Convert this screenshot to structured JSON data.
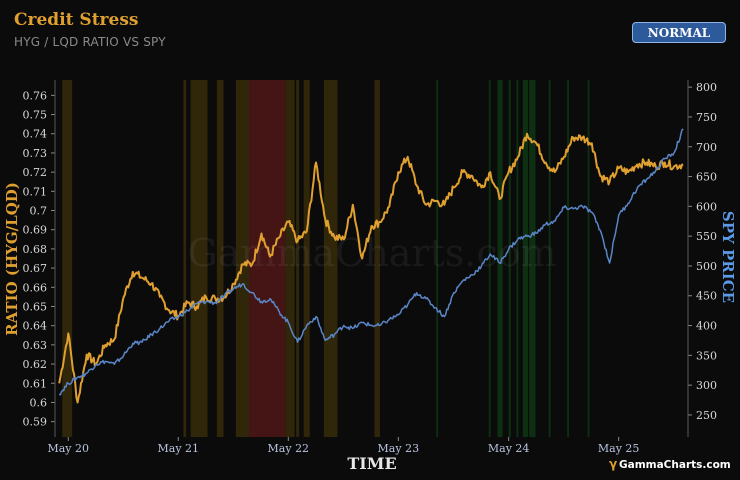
{
  "header": {
    "title": "Credit Stress",
    "subtitle": "HYG / LQD RATIO VS SPY",
    "status_badge": "NORMAL"
  },
  "colors": {
    "ratio": "#e0a030",
    "spy": "#5a86c8",
    "stress_high": "#5a1a1a",
    "stress_mild": "#3d300a",
    "calm": "#0f3a14",
    "background": "#0b0b0b"
  },
  "watermark": "GammaCharts.com",
  "brand": "GammaCharts.com",
  "chart_data": {
    "type": "line",
    "xlabel": "TIME",
    "ylabel_left": "RATIO (HYG/LQD)",
    "ylabel_right": "SPY PRICE",
    "x_ticks": [
      "May 20",
      "May 21",
      "May 22",
      "May 23",
      "May 24",
      "May 25"
    ],
    "y_left_ticks": [
      "0.59",
      "0.6",
      "0.61",
      "0.62",
      "0.63",
      "0.64",
      "0.65",
      "0.66",
      "0.67",
      "0.68",
      "0.69",
      "0.7",
      "0.71",
      "0.72",
      "0.73",
      "0.74",
      "0.75",
      "0.76"
    ],
    "y_right_ticks": [
      "250",
      "300",
      "350",
      "400",
      "450",
      "500",
      "550",
      "600",
      "650",
      "700",
      "750",
      "800"
    ],
    "xlim": [
      "2020-04-01",
      "2025-12-31"
    ],
    "ylim_left": [
      0.582,
      0.768
    ],
    "ylim_right": [
      213,
      812
    ],
    "grid": false,
    "series": [
      {
        "name": "HYG/LQD Ratio",
        "axis": "left",
        "x": [
          "2020-04",
          "2020-05",
          "2020-06",
          "2020-07",
          "2020-08",
          "2020-09",
          "2020-10",
          "2020-11",
          "2020-12",
          "2021-01",
          "2021-02",
          "2021-03",
          "2021-04",
          "2021-05",
          "2021-06",
          "2021-07",
          "2021-08",
          "2021-09",
          "2021-10",
          "2021-11",
          "2021-12",
          "2022-01",
          "2022-02",
          "2022-03",
          "2022-04",
          "2022-05",
          "2022-06",
          "2022-07",
          "2022-08",
          "2022-09",
          "2022-10",
          "2022-11",
          "2022-12",
          "2023-01",
          "2023-02",
          "2023-03",
          "2023-04",
          "2023-05",
          "2023-06",
          "2023-07",
          "2023-08",
          "2023-09",
          "2023-10",
          "2023-11",
          "2023-12",
          "2024-01",
          "2024-02",
          "2024-03",
          "2024-04",
          "2024-05",
          "2024-06",
          "2024-07",
          "2024-08",
          "2024-09",
          "2024-10",
          "2024-11",
          "2024-12",
          "2025-01",
          "2025-02",
          "2025-03",
          "2025-04",
          "2025-05",
          "2025-06",
          "2025-07",
          "2025-08",
          "2025-09",
          "2025-10",
          "2025-11",
          "2025-12"
        ],
        "values": [
          0.61,
          0.636,
          0.6,
          0.625,
          0.62,
          0.63,
          0.633,
          0.655,
          0.668,
          0.665,
          0.662,
          0.655,
          0.648,
          0.645,
          0.652,
          0.65,
          0.655,
          0.654,
          0.655,
          0.662,
          0.672,
          0.672,
          0.688,
          0.676,
          0.686,
          0.694,
          0.684,
          0.689,
          0.725,
          0.695,
          0.686,
          0.685,
          0.703,
          0.675,
          0.692,
          0.694,
          0.702,
          0.72,
          0.728,
          0.713,
          0.703,
          0.705,
          0.703,
          0.712,
          0.72,
          0.718,
          0.712,
          0.72,
          0.706,
          0.72,
          0.728,
          0.74,
          0.735,
          0.725,
          0.72,
          0.728,
          0.738,
          0.738,
          0.735,
          0.718,
          0.715,
          0.722,
          0.72,
          0.724,
          0.725,
          0.723,
          0.725,
          0.723,
          0.724
        ]
      },
      {
        "name": "SPY",
        "axis": "right",
        "x": [
          "2020-04",
          "2020-05",
          "2020-06",
          "2020-07",
          "2020-08",
          "2020-09",
          "2020-10",
          "2020-11",
          "2020-12",
          "2021-01",
          "2021-02",
          "2021-03",
          "2021-04",
          "2021-05",
          "2021-06",
          "2021-07",
          "2021-08",
          "2021-09",
          "2021-10",
          "2021-11",
          "2021-12",
          "2022-01",
          "2022-02",
          "2022-03",
          "2022-04",
          "2022-05",
          "2022-06",
          "2022-07",
          "2022-08",
          "2022-09",
          "2022-10",
          "2022-11",
          "2022-12",
          "2023-01",
          "2023-02",
          "2023-03",
          "2023-04",
          "2023-05",
          "2023-06",
          "2023-07",
          "2023-08",
          "2023-09",
          "2023-10",
          "2023-11",
          "2023-12",
          "2024-01",
          "2024-02",
          "2024-03",
          "2024-04",
          "2024-05",
          "2024-06",
          "2024-07",
          "2024-08",
          "2024-09",
          "2024-10",
          "2024-11",
          "2024-12",
          "2025-01",
          "2025-02",
          "2025-03",
          "2025-04",
          "2025-05",
          "2025-06",
          "2025-07",
          "2025-08",
          "2025-09",
          "2025-10",
          "2025-11",
          "2025-12"
        ],
        "values": [
          285,
          303,
          313,
          320,
          335,
          340,
          335,
          350,
          370,
          372,
          385,
          395,
          408,
          415,
          425,
          437,
          440,
          438,
          450,
          462,
          470,
          455,
          440,
          445,
          423,
          405,
          372,
          400,
          415,
          375,
          385,
          400,
          395,
          405,
          400,
          400,
          410,
          418,
          435,
          455,
          445,
          430,
          415,
          455,
          475,
          485,
          500,
          520,
          505,
          528,
          545,
          550,
          555,
          570,
          575,
          598,
          596,
          600,
          590,
          560,
          505,
          585,
          605,
          630,
          645,
          660,
          680,
          690,
          730
        ]
      }
    ],
    "regimes": [
      {
        "start": "2020-04-25",
        "end": "2020-05-28",
        "type": "mild"
      },
      {
        "start": "2021-06-01",
        "end": "2021-06-10",
        "type": "mild"
      },
      {
        "start": "2021-06-25",
        "end": "2021-08-20",
        "type": "mild"
      },
      {
        "start": "2021-09-20",
        "end": "2021-10-12",
        "type": "mild"
      },
      {
        "start": "2021-11-22",
        "end": "2022-01-05",
        "type": "mild"
      },
      {
        "start": "2022-01-05",
        "end": "2022-05-05",
        "type": "high"
      },
      {
        "start": "2022-05-05",
        "end": "2022-06-05",
        "type": "mild"
      },
      {
        "start": "2022-06-10",
        "end": "2022-06-20",
        "type": "mild"
      },
      {
        "start": "2022-07-05",
        "end": "2022-07-25",
        "type": "mild"
      },
      {
        "start": "2022-09-10",
        "end": "2022-10-25",
        "type": "mild"
      },
      {
        "start": "2023-02-25",
        "end": "2023-03-15",
        "type": "mild"
      },
      {
        "start": "2023-09-18",
        "end": "2023-09-24",
        "type": "calm"
      },
      {
        "start": "2024-03-10",
        "end": "2024-03-16",
        "type": "calm"
      },
      {
        "start": "2024-04-08",
        "end": "2024-04-25",
        "type": "calm"
      },
      {
        "start": "2024-05-15",
        "end": "2024-05-22",
        "type": "calm"
      },
      {
        "start": "2024-06-10",
        "end": "2024-06-16",
        "type": "calm"
      },
      {
        "start": "2024-07-01",
        "end": "2024-07-18",
        "type": "calm"
      },
      {
        "start": "2024-07-22",
        "end": "2024-08-12",
        "type": "calm"
      },
      {
        "start": "2024-09-25",
        "end": "2024-10-01",
        "type": "calm"
      },
      {
        "start": "2024-11-25",
        "end": "2024-12-01",
        "type": "calm"
      },
      {
        "start": "2025-02-01",
        "end": "2025-02-07",
        "type": "calm"
      }
    ]
  }
}
